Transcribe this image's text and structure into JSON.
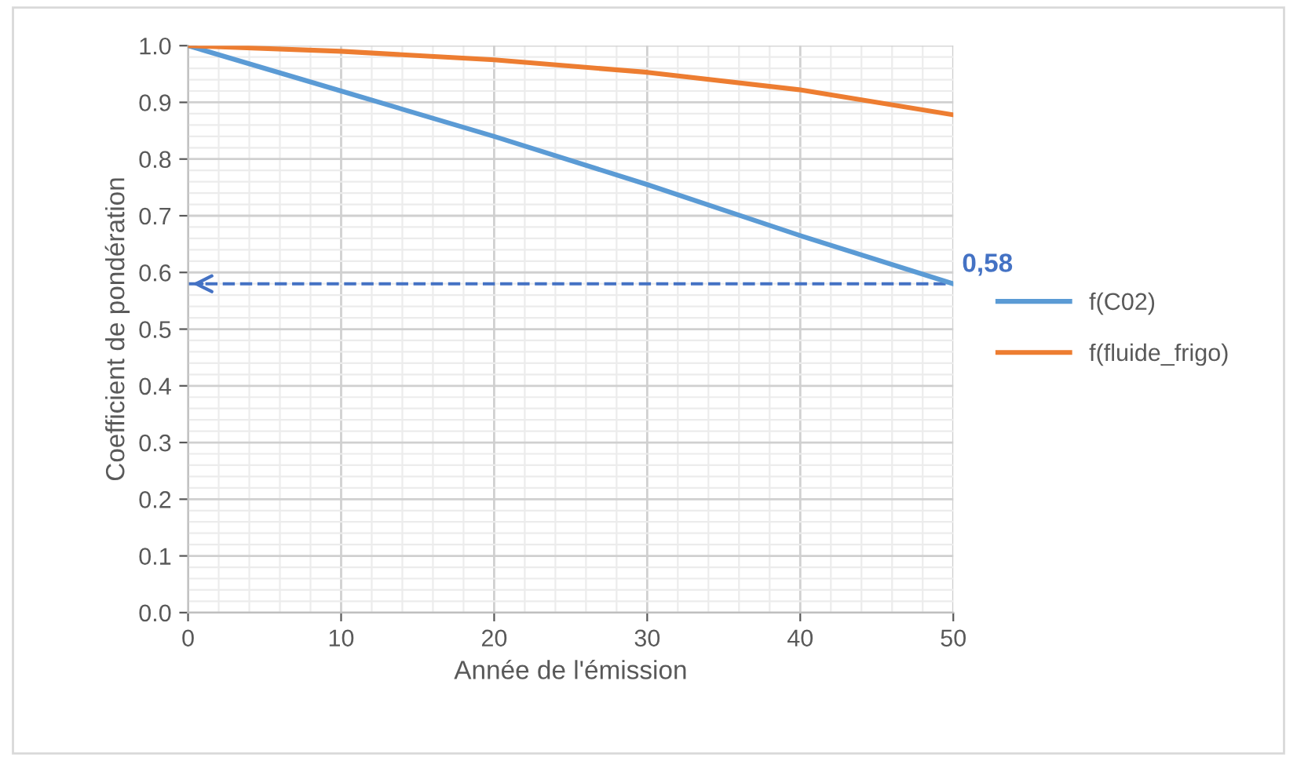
{
  "chart_data": {
    "type": "line",
    "xlabel": "Année de l'émission",
    "ylabel": "Coefficient de pondération",
    "x": [
      0,
      10,
      20,
      30,
      40,
      50
    ],
    "series": [
      {
        "name": "f(C02)",
        "color": "#5b9bd5",
        "values": [
          1.0,
          0.92,
          0.84,
          0.755,
          0.665,
          0.58
        ]
      },
      {
        "name": "f(fluide_frigo)",
        "color": "#ed7d31",
        "values": [
          1.0,
          0.99,
          0.975,
          0.953,
          0.922,
          0.878
        ]
      }
    ],
    "xlim": [
      0,
      50
    ],
    "xticks": [
      0,
      10,
      20,
      30,
      40,
      50
    ],
    "ylim": [
      0,
      1
    ],
    "yticks": [
      {
        "value": 0,
        "label": "0.0"
      },
      {
        "value": 0.1,
        "label": "0.1"
      },
      {
        "value": 0.2,
        "label": "0.2"
      },
      {
        "value": 0.3,
        "label": "0.3"
      },
      {
        "value": 0.4,
        "label": "0.4"
      },
      {
        "value": 0.5,
        "label": "0.5"
      },
      {
        "value": 0.6,
        "label": "0.6"
      },
      {
        "value": 0.7,
        "label": "0.7"
      },
      {
        "value": 0.8,
        "label": "0.8"
      },
      {
        "value": 0.9,
        "label": "0.9"
      },
      {
        "value": 1.0,
        "label": "1.0"
      }
    ],
    "ref_lines": [
      {
        "axis": "y",
        "value": 0.58,
        "label": "0,58",
        "color": "#4472c4",
        "line_style": "dashed"
      }
    ],
    "grid": true,
    "legend": "right",
    "line_style": "solid",
    "marker": "none"
  }
}
